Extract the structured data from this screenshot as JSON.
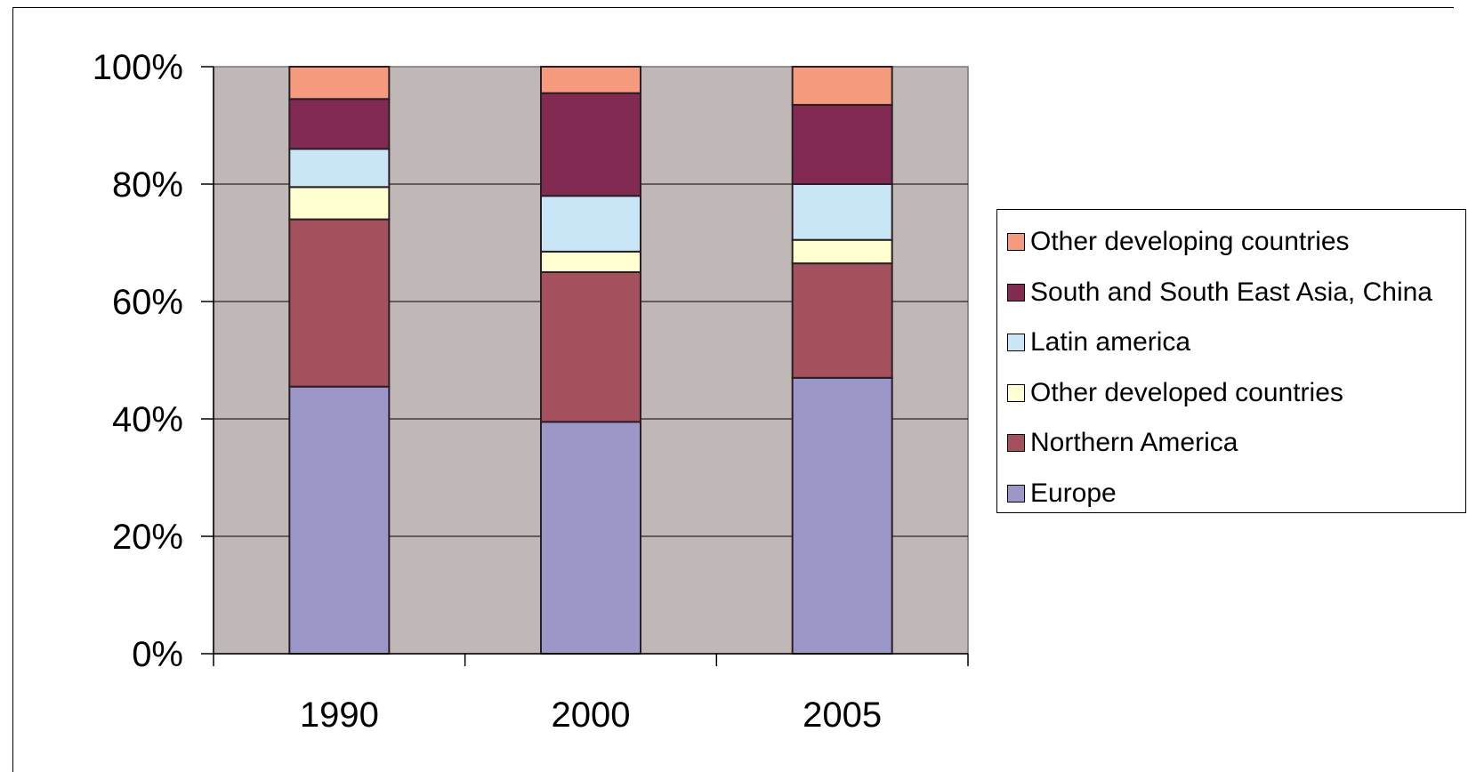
{
  "chart_data": {
    "type": "bar",
    "stacked": true,
    "percent_stacked": true,
    "title": "",
    "xlabel": "",
    "ylabel": "",
    "ylim": [
      0,
      100
    ],
    "yticks": [
      "0%",
      "20%",
      "40%",
      "60%",
      "80%",
      "100%"
    ],
    "categories": [
      "1990",
      "2000",
      "2005"
    ],
    "grid": true,
    "legend_position": "right",
    "plot_background": "#C0B8B6",
    "series": [
      {
        "name": "Europe",
        "color": "#9C97C9",
        "values": [
          45.5,
          39.5,
          47
        ]
      },
      {
        "name": "Northern America",
        "color": "#A5505D",
        "values": [
          28.5,
          25.5,
          19.5
        ]
      },
      {
        "name": "Other developed countries",
        "color": "#FFFFD0",
        "values": [
          5.5,
          3.5,
          4
        ]
      },
      {
        "name": "Latin america",
        "color": "#C8E6F6",
        "values": [
          6.5,
          9.5,
          9.5
        ]
      },
      {
        "name": "South and South East Asia, China",
        "color": "#822A52",
        "values": [
          8.5,
          17.5,
          13.5
        ]
      },
      {
        "name": "Other developing countries",
        "color": "#F59A7C",
        "values": [
          5.5,
          4.5,
          6.5
        ]
      }
    ]
  }
}
